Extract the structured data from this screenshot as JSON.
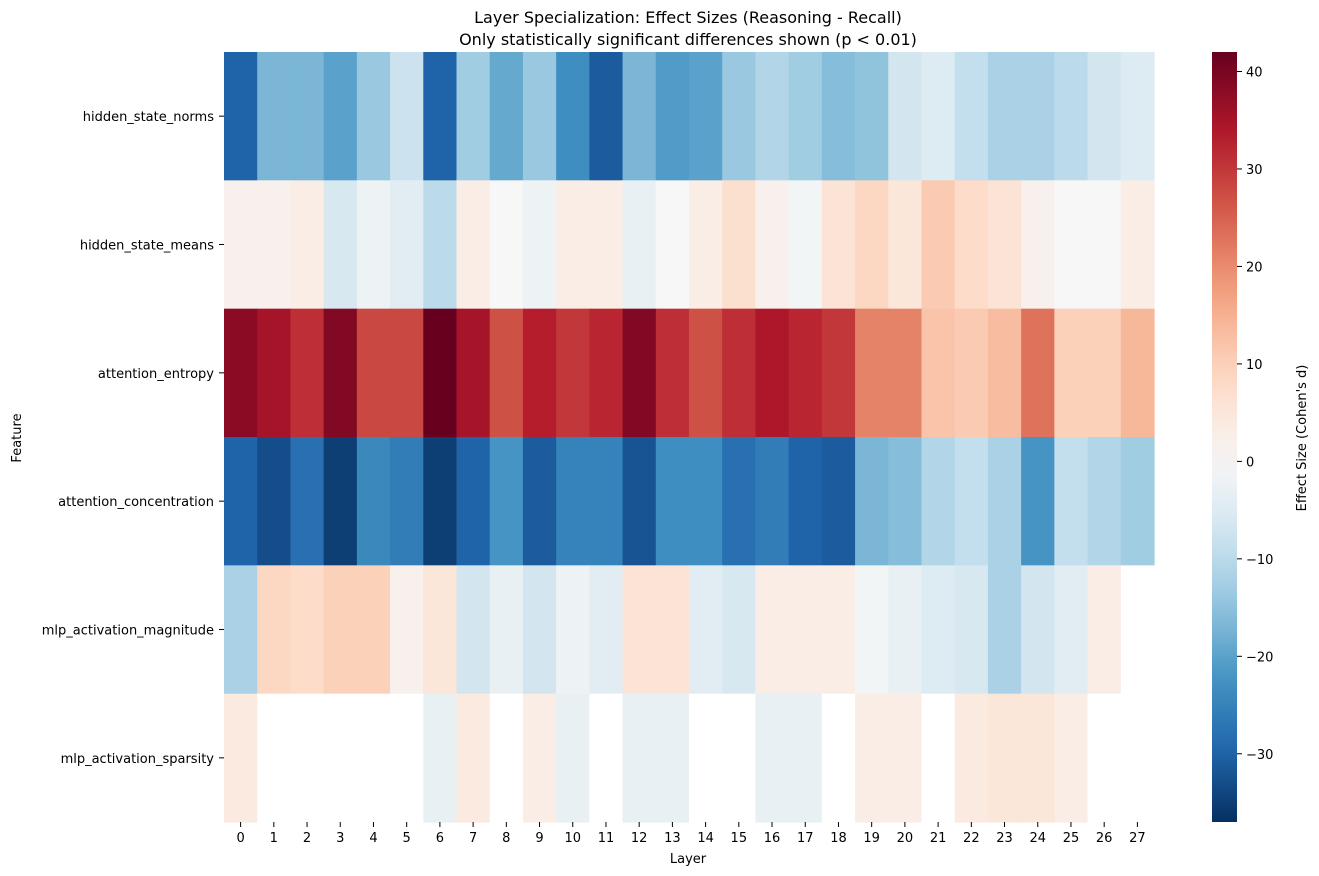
{
  "chart_data": {
    "type": "heatmap",
    "title": "Layer Specialization: Effect Sizes (Reasoning - Recall)",
    "subtitle": "Only statistically significant differences shown (p < 0.01)",
    "xlabel": "Layer",
    "ylabel": "Feature",
    "x": [
      "0",
      "1",
      "2",
      "3",
      "4",
      "5",
      "6",
      "7",
      "8",
      "9",
      "10",
      "11",
      "12",
      "13",
      "14",
      "15",
      "16",
      "17",
      "18",
      "19",
      "20",
      "21",
      "22",
      "23",
      "24",
      "25",
      "26",
      "27"
    ],
    "y": [
      "hidden_state_norms",
      "hidden_state_means",
      "attention_entropy",
      "attention_concentration",
      "mlp_activation_magnitude",
      "mlp_activation_sparsity"
    ],
    "values": [
      [
        -30,
        -17,
        -17,
        -20,
        -14,
        -8,
        -30,
        -13,
        -19,
        -14,
        -23,
        -31,
        -17,
        -21,
        -20,
        -14,
        -11,
        -13,
        -16,
        -15,
        -7,
        -5,
        -9,
        -12,
        -12,
        -10,
        -7,
        -5
      ],
      [
        2,
        2,
        3,
        -6,
        -2,
        -4,
        -10,
        3,
        0,
        -2,
        3,
        3,
        -3,
        0,
        3,
        7,
        2,
        -1,
        6,
        9,
        5,
        11,
        8,
        6,
        2,
        0,
        0,
        3
      ],
      [
        38,
        35,
        31,
        39,
        28,
        28,
        42,
        35,
        27,
        33,
        30,
        32,
        39,
        31,
        27,
        31,
        34,
        32,
        30,
        21,
        21,
        12,
        11,
        13,
        23,
        10,
        10,
        14
      ],
      [
        -30,
        -33,
        -28,
        -35,
        -24,
        -26,
        -35,
        -30,
        -22,
        -31,
        -25,
        -25,
        -32,
        -23,
        -23,
        -28,
        -26,
        -30,
        -31,
        -17,
        -16,
        -11,
        -9,
        -12,
        -22,
        -9,
        -11,
        -13
      ],
      [
        -12,
        9,
        8,
        10,
        10,
        2,
        5,
        -7,
        -3,
        -7,
        -2,
        -4,
        6,
        6,
        -4,
        -6,
        3,
        3,
        3,
        -1,
        -3,
        -5,
        -6,
        -12,
        -7,
        -4,
        3,
        null
      ],
      [
        4,
        null,
        null,
        null,
        null,
        null,
        -3,
        4,
        null,
        3,
        -3,
        null,
        -3,
        -3,
        null,
        null,
        -3,
        -3,
        null,
        3,
        3,
        null,
        4,
        5,
        5,
        3,
        null,
        null
      ]
    ],
    "colorscale": "RdBu_r",
    "vmin": -37,
    "vmax": 42,
    "colorbar": {
      "label": "Effect Size (Cohen's d)",
      "ticks": [
        "40",
        "30",
        "20",
        "10",
        "0",
        "−10",
        "−20",
        "−30"
      ],
      "tick_values": [
        40,
        30,
        20,
        10,
        0,
        -10,
        -20,
        -30
      ]
    },
    "missing_color": "#ffffff"
  }
}
